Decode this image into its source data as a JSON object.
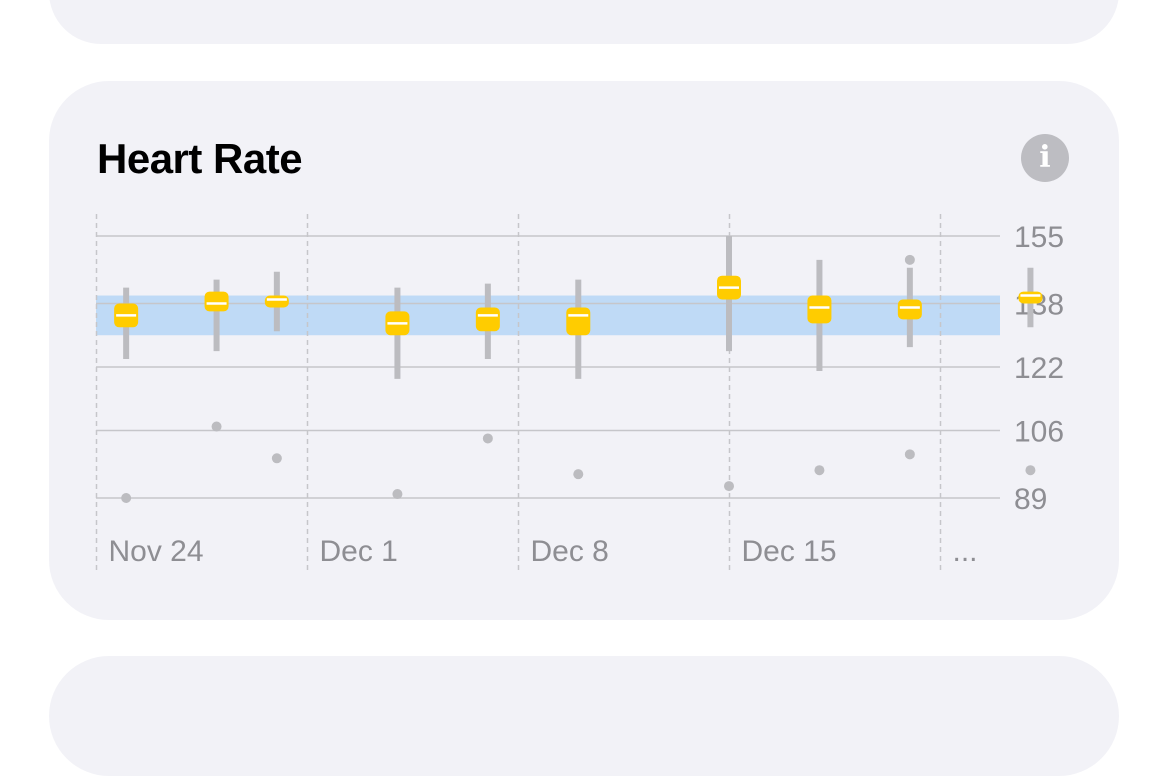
{
  "card": {
    "title": "Heart Rate",
    "info_icon": "info-circle-icon",
    "info_glyph": "i"
  },
  "colors": {
    "background": "#ffffff",
    "card": "#f2f2f7",
    "range_band": "#bfdaf6",
    "box_fill": "#ffcc00",
    "whisker": "#bcbcc0",
    "outlier": "#bcbcc0",
    "grid": "#c6c6ca",
    "tick_text": "#8e8e93"
  },
  "chart_data": {
    "type": "box",
    "title": "Heart Rate",
    "x_axis": {
      "labels": [
        "Nov 24",
        "Dec 1",
        "Dec 8",
        "Dec 15",
        "..."
      ],
      "separator_dates": [
        "2023-11-24",
        "2023-12-01",
        "2023-12-08",
        "2023-12-15",
        "2023-12-22"
      ],
      "domain": [
        "2023-11-24",
        "2023-12-22"
      ],
      "gridlines": "dashed-vertical"
    },
    "y_axis": {
      "ticks": [
        155,
        138,
        122,
        106,
        89
      ],
      "range": [
        89,
        155
      ],
      "position": "right",
      "gridlines": "solid-horizontal"
    },
    "normal_range": {
      "low": 130,
      "high": 140
    },
    "series": [
      {
        "date": "2023-11-25",
        "min": 124,
        "max": 142,
        "q1": 132,
        "q3": 138,
        "median": 135,
        "outliers": [
          89
        ]
      },
      {
        "date": "2023-11-28",
        "min": 126,
        "max": 144,
        "q1": 136,
        "q3": 141,
        "median": 138,
        "outliers": [
          107
        ]
      },
      {
        "date": "2023-11-30",
        "min": 131,
        "max": 146,
        "q1": 137,
        "q3": 140,
        "median": 139,
        "outliers": [
          99
        ]
      },
      {
        "date": "2023-12-04",
        "min": 119,
        "max": 142,
        "q1": 130,
        "q3": 136,
        "median": 133,
        "outliers": [
          90
        ]
      },
      {
        "date": "2023-12-07",
        "min": 124,
        "max": 143,
        "q1": 131,
        "q3": 137,
        "median": 135,
        "outliers": [
          104
        ]
      },
      {
        "date": "2023-12-10",
        "min": 119,
        "max": 144,
        "q1": 130,
        "q3": 137,
        "median": 135,
        "outliers": [
          95
        ]
      },
      {
        "date": "2023-12-15",
        "min": 126,
        "max": 155,
        "q1": 139,
        "q3": 145,
        "median": 142,
        "outliers": [
          92
        ]
      },
      {
        "date": "2023-12-18",
        "min": 121,
        "max": 149,
        "q1": 133,
        "q3": 140,
        "median": 137,
        "outliers": [
          96
        ]
      },
      {
        "date": "2023-12-21",
        "min": 127,
        "max": 147,
        "q1": 134,
        "q3": 139,
        "median": 137,
        "outliers": [
          100,
          149
        ]
      },
      {
        "date": "2023-12-25",
        "min": 132,
        "max": 147,
        "q1": 138,
        "q3": 141,
        "median": 140,
        "outliers": [
          96
        ]
      }
    ]
  }
}
